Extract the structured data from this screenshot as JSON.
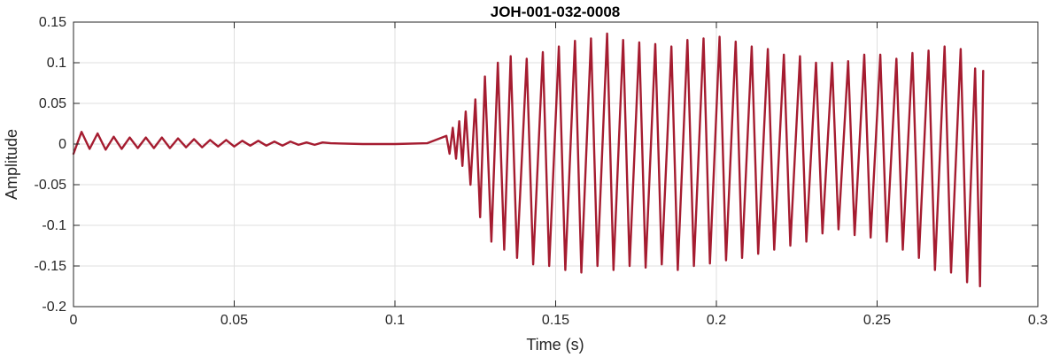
{
  "chart_data": {
    "type": "line",
    "title": "JOH-001-032-0008",
    "xlabel": "Time (s)",
    "ylabel": "Amplitude",
    "xlim": [
      0,
      0.3
    ],
    "ylim": [
      -0.2,
      0.15
    ],
    "x_ticks": [
      0,
      0.05,
      0.1,
      0.15,
      0.2,
      0.25,
      0.3
    ],
    "x_tick_labels": [
      "0",
      "0.05",
      "0.1",
      "0.15",
      "0.2",
      "0.25",
      "0.3"
    ],
    "y_ticks": [
      0.15,
      0.1,
      0.05,
      0,
      -0.05,
      -0.1,
      -0.15,
      -0.2
    ],
    "y_tick_labels": [
      "0.15",
      "0.1",
      "0.05",
      "0",
      "-0.05",
      "-0.1",
      "-0.15",
      "-0.2"
    ],
    "grid": true,
    "series": [
      {
        "color": "#A51C30",
        "x": [
          0,
          0.0025,
          0.005,
          0.0075,
          0.01,
          0.0125,
          0.015,
          0.0175,
          0.02,
          0.0225,
          0.025,
          0.0275,
          0.03,
          0.0325,
          0.035,
          0.0375,
          0.04,
          0.0425,
          0.045,
          0.0475,
          0.05,
          0.0525,
          0.055,
          0.0575,
          0.06,
          0.0625,
          0.065,
          0.0675,
          0.07,
          0.0725,
          0.075,
          0.0775,
          0.08,
          0.09,
          0.1,
          0.11,
          0.116,
          0.117,
          0.118,
          0.119,
          0.12,
          0.121,
          0.122,
          0.1235,
          0.125,
          0.1265,
          0.128,
          0.13,
          0.132,
          0.134,
          0.136,
          0.138,
          0.141,
          0.143,
          0.146,
          0.148,
          0.151,
          0.153,
          0.156,
          0.158,
          0.161,
          0.163,
          0.166,
          0.168,
          0.171,
          0.173,
          0.176,
          0.178,
          0.181,
          0.183,
          0.186,
          0.188,
          0.191,
          0.193,
          0.196,
          0.198,
          0.201,
          0.203,
          0.206,
          0.208,
          0.211,
          0.213,
          0.216,
          0.218,
          0.221,
          0.223,
          0.226,
          0.228,
          0.231,
          0.233,
          0.236,
          0.238,
          0.241,
          0.243,
          0.246,
          0.248,
          0.251,
          0.253,
          0.256,
          0.258,
          0.261,
          0.263,
          0.266,
          0.268,
          0.271,
          0.273,
          0.276,
          0.278,
          0.2805,
          0.282,
          0.283
        ],
        "y": [
          -0.012,
          0.015,
          -0.006,
          0.013,
          -0.007,
          0.009,
          -0.006,
          0.008,
          -0.005,
          0.008,
          -0.005,
          0.008,
          -0.005,
          0.007,
          -0.004,
          0.006,
          -0.004,
          0.005,
          -0.003,
          0.005,
          -0.003,
          0.004,
          -0.002,
          0.004,
          -0.002,
          0.003,
          -0.002,
          0.003,
          -0.001,
          0.002,
          -0.001,
          0.002,
          0.001,
          0,
          0,
          0.001,
          0.01,
          -0.012,
          0.02,
          -0.018,
          0.028,
          -0.027,
          0.04,
          -0.05,
          0.055,
          -0.09,
          0.083,
          -0.12,
          0.1,
          -0.13,
          0.108,
          -0.14,
          0.105,
          -0.148,
          0.113,
          -0.15,
          0.12,
          -0.155,
          0.127,
          -0.158,
          0.13,
          -0.15,
          0.136,
          -0.155,
          0.128,
          -0.15,
          0.125,
          -0.152,
          0.123,
          -0.148,
          0.12,
          -0.155,
          0.128,
          -0.15,
          0.13,
          -0.147,
          0.132,
          -0.143,
          0.126,
          -0.14,
          0.12,
          -0.135,
          0.117,
          -0.13,
          0.11,
          -0.125,
          0.108,
          -0.12,
          0.1,
          -0.11,
          0.1,
          -0.105,
          0.102,
          -0.112,
          0.11,
          -0.115,
          0.11,
          -0.12,
          0.105,
          -0.13,
          0.112,
          -0.14,
          0.115,
          -0.155,
          0.12,
          -0.158,
          0.117,
          -0.17,
          0.093,
          -0.175,
          0.09
        ]
      }
    ]
  }
}
